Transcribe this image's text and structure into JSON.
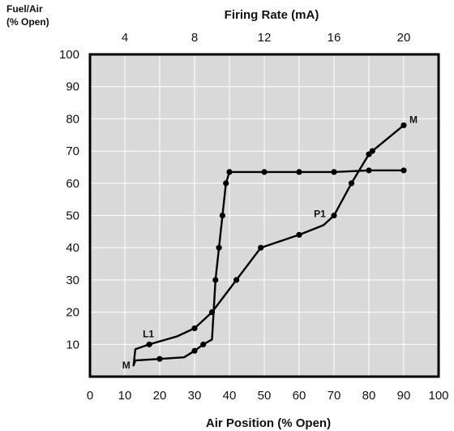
{
  "chart_data": {
    "type": "line",
    "top_axis_title": "Firing Rate (mA)",
    "bottom_axis_title": "Air Position (% Open)",
    "y_axis_title_line1": "Fuel/Air",
    "y_axis_title_line2": "(% Open)",
    "xlim": [
      0,
      100
    ],
    "ylim": [
      0,
      100
    ],
    "top_axis_range": [
      2,
      22
    ],
    "x_ticks": [
      0,
      10,
      20,
      30,
      40,
      50,
      60,
      70,
      80,
      90,
      100
    ],
    "y_ticks": [
      10,
      20,
      30,
      40,
      50,
      60,
      70,
      80,
      90,
      100
    ],
    "top_ticks": [
      4,
      8,
      12,
      16,
      20
    ],
    "grid": true,
    "background": "#d9d9d9",
    "line_color": "#000000",
    "series": [
      {
        "points": [
          [
            12.5,
            3.5
          ],
          [
            13,
            5
          ],
          [
            20,
            5.5
          ],
          [
            27,
            6
          ],
          [
            30,
            8
          ],
          [
            32.5,
            10
          ],
          [
            35,
            11.5
          ],
          [
            36,
            30
          ],
          [
            37,
            40
          ],
          [
            38,
            50
          ],
          [
            39,
            60
          ],
          [
            40,
            63.5
          ],
          [
            50,
            63.5
          ],
          [
            60,
            63.5
          ],
          [
            70,
            63.5
          ],
          [
            80,
            64
          ],
          [
            90,
            64
          ]
        ],
        "markers": [
          [
            20,
            5.5
          ],
          [
            30,
            8
          ],
          [
            32.5,
            10
          ],
          [
            36,
            30
          ],
          [
            37,
            40
          ],
          [
            38,
            50
          ],
          [
            39,
            60
          ],
          [
            40,
            63.5
          ],
          [
            50,
            63.5
          ],
          [
            60,
            63.5
          ],
          [
            70,
            63.5
          ],
          [
            80,
            64
          ],
          [
            90,
            64
          ]
        ]
      },
      {
        "points": [
          [
            12.5,
            3.5
          ],
          [
            13,
            8.5
          ],
          [
            17,
            10
          ],
          [
            25,
            12.5
          ],
          [
            30,
            15
          ],
          [
            35,
            20
          ],
          [
            42,
            30
          ],
          [
            49,
            40
          ],
          [
            60,
            44
          ],
          [
            67,
            47
          ],
          [
            70,
            50
          ],
          [
            75,
            60
          ],
          [
            80,
            69
          ],
          [
            81,
            70
          ],
          [
            90,
            78
          ]
        ],
        "markers": [
          [
            17,
            10
          ],
          [
            30,
            15
          ],
          [
            35,
            20
          ],
          [
            42,
            30
          ],
          [
            49,
            40
          ],
          [
            60,
            44
          ],
          [
            70,
            50
          ],
          [
            75,
            60
          ],
          [
            80,
            69
          ],
          [
            81,
            70
          ],
          [
            90,
            78
          ]
        ]
      }
    ],
    "annotations": [
      {
        "text": "L1",
        "x": 17,
        "y": 10
      },
      {
        "text": "M",
        "x": 12.5,
        "y": 3.5
      },
      {
        "text": "P1",
        "x": 67,
        "y": 47
      },
      {
        "text": "M",
        "x": 90,
        "y": 78
      }
    ]
  }
}
